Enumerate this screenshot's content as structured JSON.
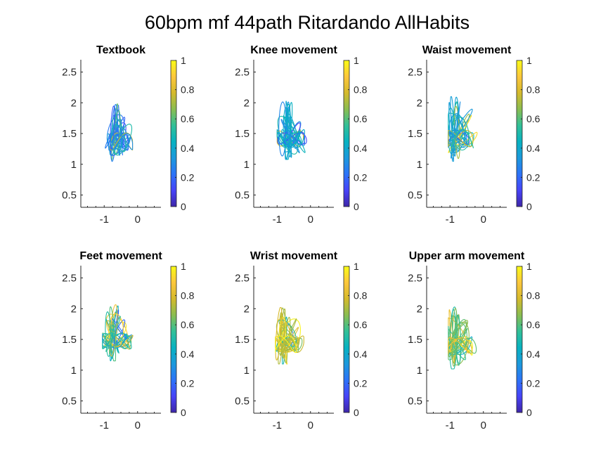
{
  "figure": {
    "title": "60bpm mf 44path Ritardando AllHabits"
  },
  "colorbar": {
    "colormap": "parula",
    "range": [
      0,
      1
    ],
    "ticks": [
      0,
      0.2,
      0.4,
      0.6,
      0.8,
      1
    ],
    "tick_labels": [
      "0",
      "0.2",
      "0.4",
      "0.6",
      "0.8",
      "1"
    ],
    "stops": [
      "#3e26a8",
      "#4743f8",
      "#2c73f8",
      "#1b99dc",
      "#07b2c1",
      "#32c097",
      "#8abd50",
      "#d5ba2c",
      "#fcc73c",
      "#f9fb15"
    ]
  },
  "chart_data": [
    {
      "type": "line",
      "title": "Textbook",
      "xlim": [
        -1.7,
        0.7
      ],
      "ylim": [
        0.3,
        2.7
      ],
      "x_ticks": [
        -1,
        0
      ],
      "x_tick_labels": [
        "-1",
        "0"
      ],
      "y_ticks": [
        0.5,
        1,
        1.5,
        2,
        2.5
      ],
      "y_tick_labels": [
        "0.5",
        "1",
        "1.5",
        "2",
        "2.5"
      ],
      "trajectory": {
        "center": [
          -0.55,
          1.38
        ],
        "x_range": [
          -1.0,
          -0.15
        ],
        "y_range": [
          1.03,
          2.0
        ],
        "color_range": [
          0.05,
          0.75
        ],
        "dominant_color": 0.25
      }
    },
    {
      "type": "line",
      "title": "Knee movement",
      "xlim": [
        -1.7,
        0.7
      ],
      "ylim": [
        0.3,
        2.7
      ],
      "x_ticks": [
        -1,
        0
      ],
      "x_tick_labels": [
        "-1",
        "0"
      ],
      "y_ticks": [
        0.5,
        1,
        1.5,
        2,
        2.5
      ],
      "y_tick_labels": [
        "0.5",
        "1",
        "1.5",
        "2",
        "2.5"
      ],
      "trajectory": {
        "center": [
          -0.6,
          1.45
        ],
        "x_range": [
          -1.0,
          -0.1
        ],
        "y_range": [
          1.08,
          2.05
        ],
        "color_range": [
          0.1,
          0.85
        ],
        "dominant_color": 0.4
      }
    },
    {
      "type": "line",
      "title": "Waist movement",
      "xlim": [
        -1.7,
        0.7
      ],
      "ylim": [
        0.3,
        2.7
      ],
      "x_ticks": [
        -1,
        0
      ],
      "x_tick_labels": [
        "-1",
        "0"
      ],
      "y_ticks": [
        0.5,
        1,
        1.5,
        2,
        2.5
      ],
      "y_tick_labels": [
        "0.5",
        "1",
        "1.5",
        "2",
        "2.5"
      ],
      "trajectory": {
        "center": [
          -0.75,
          1.5
        ],
        "x_range": [
          -1.05,
          -0.05
        ],
        "y_range": [
          1.05,
          2.1
        ],
        "color_range": [
          0.05,
          0.95
        ],
        "dominant_color": 0.45
      }
    },
    {
      "type": "line",
      "title": "Feet movement",
      "xlim": [
        -1.7,
        0.7
      ],
      "ylim": [
        0.3,
        2.7
      ],
      "x_ticks": [
        -1,
        0
      ],
      "x_tick_labels": [
        "-1",
        "0"
      ],
      "y_ticks": [
        0.5,
        1,
        1.5,
        2,
        2.5
      ],
      "y_tick_labels": [
        "0.5",
        "1",
        "1.5",
        "2",
        "2.5"
      ],
      "trajectory": {
        "center": [
          -0.65,
          1.5
        ],
        "x_range": [
          -1.05,
          -0.05
        ],
        "y_range": [
          1.15,
          2.08
        ],
        "color_range": [
          0.15,
          0.98
        ],
        "dominant_color": 0.5
      }
    },
    {
      "type": "line",
      "title": "Wrist movement",
      "xlim": [
        -1.7,
        0.7
      ],
      "ylim": [
        0.3,
        2.7
      ],
      "x_ticks": [
        -1,
        0
      ],
      "x_tick_labels": [
        "-1",
        "0"
      ],
      "y_ticks": [
        0.5,
        1,
        1.5,
        2,
        2.5
      ],
      "y_tick_labels": [
        "0.5",
        "1",
        "1.5",
        "2",
        "2.5"
      ],
      "trajectory": {
        "center": [
          -0.7,
          1.5
        ],
        "x_range": [
          -1.05,
          -0.2
        ],
        "y_range": [
          1.1,
          2.02
        ],
        "color_range": [
          0.2,
          1.0
        ],
        "dominant_color": 0.75
      }
    },
    {
      "type": "line",
      "title": "Upper arm movement",
      "xlim": [
        -1.7,
        0.7
      ],
      "ylim": [
        0.3,
        2.7
      ],
      "x_ticks": [
        -1,
        0
      ],
      "x_tick_labels": [
        "-1",
        "0"
      ],
      "y_ticks": [
        0.5,
        1,
        1.5,
        2,
        2.5
      ],
      "y_tick_labels": [
        "0.5",
        "1",
        "1.5",
        "2",
        "2.5"
      ],
      "trajectory": {
        "center": [
          -0.75,
          1.5
        ],
        "x_range": [
          -1.05,
          -0.05
        ],
        "y_range": [
          1.02,
          2.1
        ],
        "color_range": [
          0.2,
          1.0
        ],
        "dominant_color": 0.6
      }
    }
  ]
}
